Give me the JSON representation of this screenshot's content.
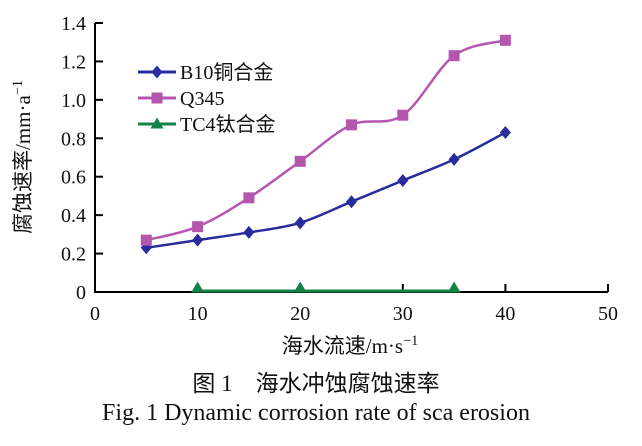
{
  "figure": {
    "caption_zh": "图 1　海水冲蚀腐蚀速率",
    "caption_en": "Fig. 1 Dynamic corrosion rate of sca erosion"
  },
  "axes": {
    "x_label_base": "海水流速/m·s",
    "x_label_sup": "−1",
    "y_label_base": "腐蚀速率/mm·a",
    "y_label_sup": "−1"
  },
  "chart_data": {
    "type": "line",
    "title": "",
    "xlabel": "海水流速/m·s⁻¹",
    "ylabel": "腐蚀速率/mm·a⁻¹",
    "xlim": [
      0,
      50
    ],
    "ylim": [
      0,
      1.4
    ],
    "x_tick_labels": [
      "0",
      "10",
      "20",
      "30",
      "40",
      "50"
    ],
    "y_tick_labels": [
      "0",
      "0.2",
      "0.4",
      "0.6",
      "0.8",
      "1.0",
      "1.2",
      "1.4"
    ],
    "grid": false,
    "legend_position": "upper-left-inside",
    "axis_color": "#000000",
    "series": [
      {
        "name": "B10铜合金",
        "marker": "diamond",
        "color": "#282c9c",
        "x": [
          5,
          10,
          15,
          20,
          25,
          30,
          35,
          40
        ],
        "y": [
          0.23,
          0.27,
          0.31,
          0.36,
          0.47,
          0.58,
          0.69,
          0.83
        ]
      },
      {
        "name": "Q345",
        "marker": "square",
        "color": "#b456ae",
        "x": [
          5,
          10,
          15,
          20,
          25,
          30,
          35,
          40
        ],
        "y": [
          0.27,
          0.34,
          0.49,
          0.68,
          0.87,
          0.92,
          1.23,
          1.31
        ]
      },
      {
        "name": "TC4钛合金",
        "marker": "triangle",
        "color": "#128347",
        "x": [
          10,
          20,
          35
        ],
        "y": [
          0.005,
          0.005,
          0.005
        ]
      }
    ]
  }
}
